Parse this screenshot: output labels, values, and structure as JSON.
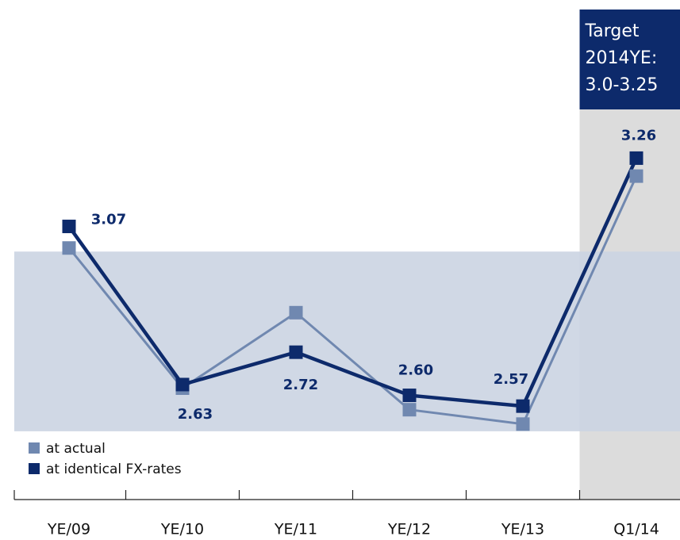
{
  "chart_data": {
    "type": "line",
    "categories": [
      "YE/09",
      "YE/10",
      "YE/11",
      "YE/12",
      "YE/13",
      "Q1/14"
    ],
    "series": [
      {
        "name": "at actual",
        "color": "#7088b0",
        "values": [
          3.01,
          2.62,
          2.83,
          2.56,
          2.52,
          3.21
        ]
      },
      {
        "name": "at identical FX-rates",
        "color": "#0d2a6b",
        "values": [
          3.07,
          2.63,
          2.72,
          2.6,
          2.57,
          3.26
        ],
        "value_labels": [
          "3.07",
          "2.63",
          "2.72",
          "2.60",
          "2.57",
          "3.26"
        ]
      }
    ],
    "band": [
      2.5,
      3.0
    ],
    "annotation": [
      "Target",
      "2014YE:",
      "3.0-3.25"
    ],
    "ylim": [
      2.31,
      3.7
    ],
    "legend": "lower left"
  }
}
